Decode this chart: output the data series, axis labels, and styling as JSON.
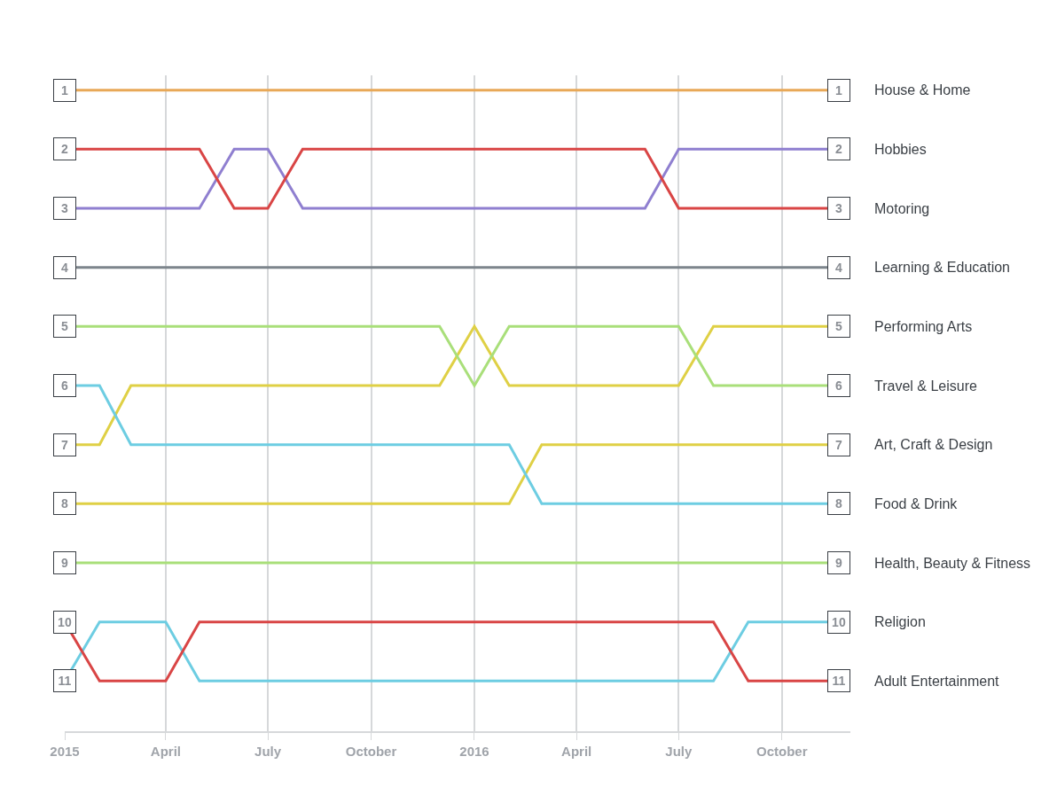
{
  "chart_data": {
    "type": "line",
    "x": [
      "2015-01",
      "2015-02",
      "2015-03",
      "2015-04",
      "2015-05",
      "2015-06",
      "2015-07",
      "2015-08",
      "2015-09",
      "2015-10",
      "2015-11",
      "2015-12",
      "2016-01",
      "2016-02",
      "2016-03",
      "2016-04",
      "2016-05",
      "2016-06",
      "2016-07",
      "2016-08",
      "2016-09",
      "2016-10",
      "2016-11",
      "2016-12"
    ],
    "series": [
      {
        "name": "House & Home",
        "color": "#e8a857",
        "values": [
          1,
          1,
          1,
          1,
          1,
          1,
          1,
          1,
          1,
          1,
          1,
          1,
          1,
          1,
          1,
          1,
          1,
          1,
          1,
          1,
          1,
          1,
          1,
          1
        ]
      },
      {
        "name": "Hobbies",
        "color": "#8f7fd0",
        "values": [
          3,
          3,
          3,
          3,
          3,
          2,
          2,
          3,
          3,
          3,
          3,
          3,
          3,
          3,
          3,
          3,
          3,
          3,
          2,
          2,
          2,
          2,
          2,
          2
        ]
      },
      {
        "name": "Motoring",
        "color": "#d94545",
        "values": [
          2,
          2,
          2,
          2,
          2,
          3,
          3,
          2,
          2,
          2,
          2,
          2,
          2,
          2,
          2,
          2,
          2,
          2,
          3,
          3,
          3,
          3,
          3,
          3
        ]
      },
      {
        "name": "Learning & Education",
        "color": "#7d858c",
        "values": [
          4,
          4,
          4,
          4,
          4,
          4,
          4,
          4,
          4,
          4,
          4,
          4,
          4,
          4,
          4,
          4,
          4,
          4,
          4,
          4,
          4,
          4,
          4,
          4
        ]
      },
      {
        "name": "Performing Arts",
        "color": "#dfd045",
        "values": [
          7,
          7,
          6,
          6,
          6,
          6,
          6,
          6,
          6,
          6,
          6,
          6,
          5,
          6,
          6,
          6,
          6,
          6,
          6,
          5,
          5,
          5,
          5,
          5
        ]
      },
      {
        "name": "Travel & Leisure",
        "color": "#a9df7a",
        "values": [
          5,
          5,
          5,
          5,
          5,
          5,
          5,
          5,
          5,
          5,
          5,
          5,
          6,
          5,
          5,
          5,
          5,
          5,
          5,
          6,
          6,
          6,
          6,
          6
        ]
      },
      {
        "name": "Art, Craft & Design",
        "color": "#dfd045",
        "values": [
          8,
          8,
          8,
          8,
          8,
          8,
          8,
          8,
          8,
          8,
          8,
          8,
          8,
          8,
          7,
          7,
          7,
          7,
          7,
          7,
          7,
          7,
          7,
          7
        ]
      },
      {
        "name": "Food & Drink",
        "color": "#6dcde2",
        "values": [
          6,
          6,
          7,
          7,
          7,
          7,
          7,
          7,
          7,
          7,
          7,
          7,
          7,
          7,
          8,
          8,
          8,
          8,
          8,
          8,
          8,
          8,
          8,
          8
        ]
      },
      {
        "name": "Health, Beauty & Fitness",
        "color": "#a9df7a",
        "values": [
          9,
          9,
          9,
          9,
          9,
          9,
          9,
          9,
          9,
          9,
          9,
          9,
          9,
          9,
          9,
          9,
          9,
          9,
          9,
          9,
          9,
          9,
          9,
          9
        ]
      },
      {
        "name": "Religion",
        "color": "#6dcde2",
        "values": [
          11,
          10,
          10,
          10,
          11,
          11,
          11,
          11,
          11,
          11,
          11,
          11,
          11,
          11,
          11,
          11,
          11,
          11,
          11,
          11,
          10,
          10,
          10,
          10
        ]
      },
      {
        "name": "Adult Entertainment",
        "color": "#d94545",
        "values": [
          10,
          11,
          11,
          11,
          10,
          10,
          10,
          10,
          10,
          10,
          10,
          10,
          10,
          10,
          10,
          10,
          10,
          10,
          10,
          10,
          11,
          11,
          11,
          11
        ]
      }
    ],
    "xlim": [
      "2015-01-01",
      "2016-12-01"
    ],
    "xticks": [
      {
        "value": "2015-01-01",
        "label": "2015"
      },
      {
        "value": "2015-04-01",
        "label": "April"
      },
      {
        "value": "2015-07-01",
        "label": "July"
      },
      {
        "value": "2015-10-01",
        "label": "October"
      },
      {
        "value": "2016-01-01",
        "label": "2016"
      },
      {
        "value": "2016-04-01",
        "label": "April"
      },
      {
        "value": "2016-07-01",
        "label": "July"
      },
      {
        "value": "2016-10-01",
        "label": "October"
      }
    ],
    "ylim": [
      11.85,
      0.75
    ],
    "yticks": [
      1,
      2,
      3,
      4,
      5,
      6,
      7,
      8,
      9,
      10,
      11
    ],
    "y2lim": [
      11.85,
      0.75
    ],
    "y2ticks": [
      1,
      2,
      3,
      4,
      5,
      6,
      7,
      8,
      9,
      10,
      11
    ],
    "grid": "x",
    "legend": "right",
    "line_style": "solid",
    "marker": "none"
  }
}
